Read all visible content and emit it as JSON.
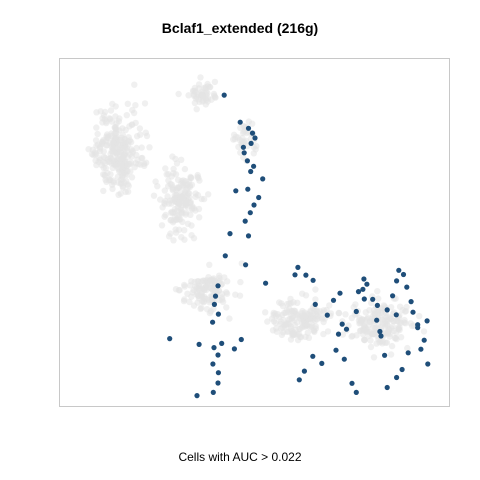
{
  "chart_data": {
    "type": "scatter",
    "title": "Bclaf1_extended (216g)",
    "xlabel": "Cells with AUC > 0.022",
    "ylabel": "",
    "grid": false,
    "legend": "none",
    "colors": {
      "background_cells": "#e4e4e4",
      "highlighted_cells": "#1f4e79",
      "frame": "#c8c8c8"
    },
    "xlim": [
      0,
      100
    ],
    "ylim": [
      0,
      100
    ],
    "series": [
      {
        "role": "highlighted",
        "x": [
          41.1,
          45.5,
          47.8,
          48.9,
          49.6,
          48.5,
          46.4,
          46.6,
          47.5,
          49.2,
          48.4,
          51.7,
          44.3,
          47.6,
          50.6,
          49.3,
          48.3,
          46.9,
          42.7,
          47.8,
          41.4,
          47.0,
          52.5,
          26.1,
          34.2,
          38.3,
          45.8,
          33.6,
          38.1,
          39.4,
          39.5,
          38.0,
          39.4,
          40.4,
          37.9,
          39.5,
          38.4,
          43.9,
          38.7,
          39.4,
          60.6,
          61.4,
          63.6,
          65.6,
          66.2,
          69.5,
          71.2,
          73.6,
          74.2,
          76.3,
          77.5,
          79.3,
          79.6,
          80.4,
          82.0,
          83.1,
          84.3,
          85.3,
          86.0,
          87.5,
          88.6,
          89.2,
          90.5,
          91.4,
          92.6,
          93.1,
          94.4,
          95.3,
          96.2,
          97.0,
          97.2,
          90.1,
          88.6,
          86.0,
          83.3,
          79.7,
          77.5,
          74.8,
          72.6,
          71.9,
          68.0,
          65.5,
          63.2,
          61.8,
          84.0,
          88.5,
          91.8,
          94.4,
          78.1,
          73.0
        ],
        "y": [
          92.5,
          84.1,
          82.2,
          80.7,
          79.2,
          77.5,
          76.3,
          74.6,
          72.1,
          70.4,
          68.8,
          66.5,
          62.8,
          63.3,
          60.7,
          58.4,
          56.0,
          53.4,
          49.5,
          48.8,
          42.6,
          39.8,
          34.1,
          16.9,
          15.1,
          14.1,
          16.6,
          -0.8,
          0.2,
          3.1,
          6.3,
          9.0,
          11.8,
          15.4,
          22.0,
          24.5,
          27.5,
          13.7,
          30.1,
          33.3,
          36.7,
          39.0,
          36.6,
          35.0,
          27.5,
          24.2,
          28.8,
          21.4,
          10.5,
          3.0,
          0.2,
          32.2,
          35.4,
          33.8,
          29.1,
          22.6,
          17.7,
          11.7,
          25.8,
          30.2,
          34.8,
          38.1,
          36.8,
          32.9,
          28.4,
          25.1,
          20.3,
          13.6,
          16.4,
          22.4,
          9.0,
          7.3,
          4.8,
          1.7,
          27.2,
          29.2,
          25.3,
          19.8,
          18.3,
          13.3,
          9.2,
          11.4,
          6.8,
          4.1,
          19.1,
          24.3,
          12.5,
          21.2,
          31.5,
          31.0
        ]
      }
    ]
  }
}
